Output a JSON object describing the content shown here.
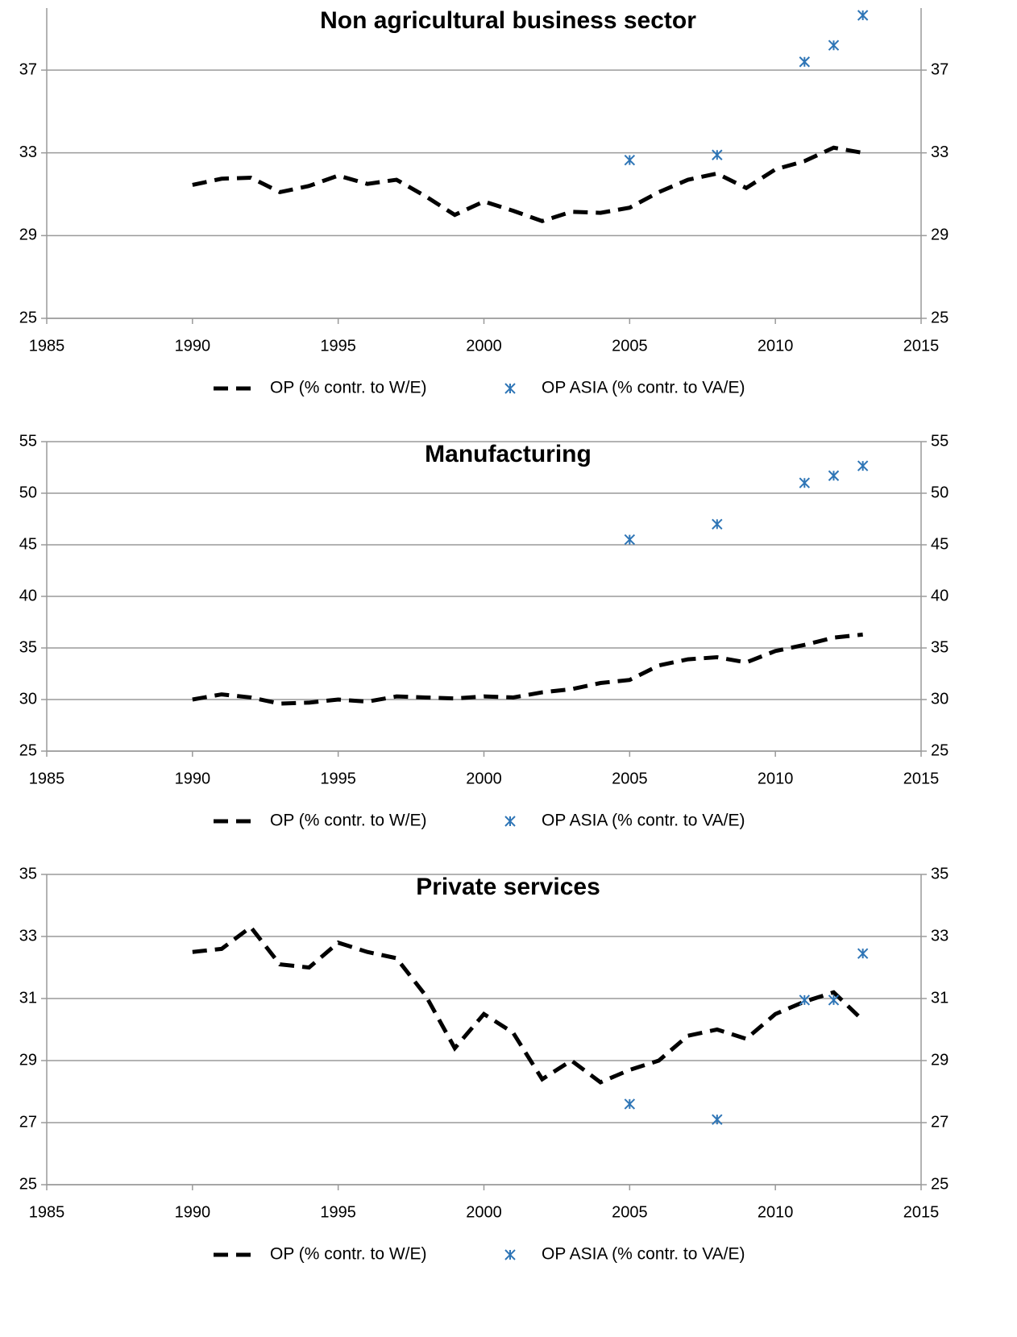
{
  "chart_data": [
    {
      "type": "line",
      "title": "Non agricultural business sector",
      "xlim": [
        1985,
        2015
      ],
      "xticks": [
        1985,
        1990,
        1995,
        2000,
        2005,
        2010,
        2015
      ],
      "ylim": [
        25,
        40
      ],
      "yticks": [
        25,
        29,
        33,
        37
      ],
      "grid": true,
      "right_axis": true,
      "legend": "bottom",
      "series": [
        {
          "name": "OP (% contr. to W/E)",
          "color": "#000000",
          "style": "dashed",
          "x": [
            1990,
            1991,
            1992,
            1993,
            1994,
            1995,
            1996,
            1997,
            1998,
            1999,
            2000,
            2001,
            2002,
            2003,
            2004,
            2005,
            2006,
            2007,
            2008,
            2009,
            2010,
            2011,
            2012,
            2013
          ],
          "values": [
            31.45,
            31.75,
            31.8,
            31.1,
            31.4,
            31.9,
            31.5,
            31.7,
            30.9,
            30.0,
            30.65,
            30.2,
            29.7,
            30.15,
            30.1,
            30.35,
            31.1,
            31.7,
            32.0,
            31.3,
            32.2,
            32.6,
            33.25,
            33.0
          ]
        },
        {
          "name": "OP ASIA (% contr. to VA/E)",
          "color": "#2e75b6",
          "style": "asterisk",
          "x": [
            2005,
            2008,
            2011,
            2012,
            2013
          ],
          "values": [
            32.65,
            32.9,
            37.4,
            38.2,
            39.65
          ]
        }
      ]
    },
    {
      "type": "line",
      "title": "Manufacturing",
      "xlim": [
        1985,
        2015
      ],
      "xticks": [
        1985,
        1990,
        1995,
        2000,
        2005,
        2010,
        2015
      ],
      "ylim": [
        25,
        55
      ],
      "yticks": [
        25,
        30,
        35,
        40,
        45,
        50,
        55
      ],
      "grid": true,
      "right_axis": true,
      "legend": "bottom",
      "series": [
        {
          "name": "OP (% contr. to W/E)",
          "color": "#000000",
          "style": "dashed",
          "x": [
            1990,
            1991,
            1992,
            1993,
            1994,
            1995,
            1996,
            1997,
            1998,
            1999,
            2000,
            2001,
            2002,
            2003,
            2004,
            2005,
            2006,
            2007,
            2008,
            2009,
            2010,
            2011,
            2012,
            2013
          ],
          "values": [
            30.0,
            30.5,
            30.2,
            29.6,
            29.7,
            30.0,
            29.8,
            30.3,
            30.2,
            30.1,
            30.3,
            30.2,
            30.7,
            31.0,
            31.6,
            31.9,
            33.3,
            33.9,
            34.1,
            33.6,
            34.7,
            35.3,
            36.0,
            36.3
          ]
        },
        {
          "name": "OP ASIA (% contr. to VA/E)",
          "color": "#2e75b6",
          "style": "asterisk",
          "x": [
            2005,
            2008,
            2011,
            2012,
            2013
          ],
          "values": [
            45.5,
            47.0,
            51.0,
            51.7,
            52.65
          ]
        }
      ]
    },
    {
      "type": "line",
      "title": "Private services",
      "xlim": [
        1985,
        2015
      ],
      "xticks": [
        1985,
        1990,
        1995,
        2000,
        2005,
        2010,
        2015
      ],
      "ylim": [
        25,
        35
      ],
      "yticks": [
        25,
        27,
        29,
        31,
        33,
        35
      ],
      "grid": true,
      "right_axis": true,
      "legend": "bottom",
      "series": [
        {
          "name": "OP (% contr. to W/E)",
          "color": "#000000",
          "style": "dashed",
          "x": [
            1990,
            1991,
            1992,
            1993,
            1994,
            1995,
            1996,
            1997,
            1998,
            1999,
            2000,
            2001,
            2002,
            2003,
            2004,
            2005,
            2006,
            2007,
            2008,
            2009,
            2010,
            2011,
            2012,
            2013
          ],
          "values": [
            32.5,
            32.6,
            33.3,
            32.1,
            32.0,
            32.8,
            32.5,
            32.3,
            31.1,
            29.4,
            30.5,
            29.9,
            28.4,
            29.0,
            28.3,
            28.7,
            29.0,
            29.8,
            30.0,
            29.7,
            30.5,
            30.9,
            31.2,
            30.3
          ]
        },
        {
          "name": "OP ASIA (% contr. to VA/E)",
          "color": "#2e75b6",
          "style": "asterisk",
          "x": [
            2005,
            2008,
            2011,
            2012,
            2013
          ],
          "values": [
            27.6,
            27.1,
            30.95,
            30.95,
            32.45
          ]
        }
      ]
    }
  ]
}
